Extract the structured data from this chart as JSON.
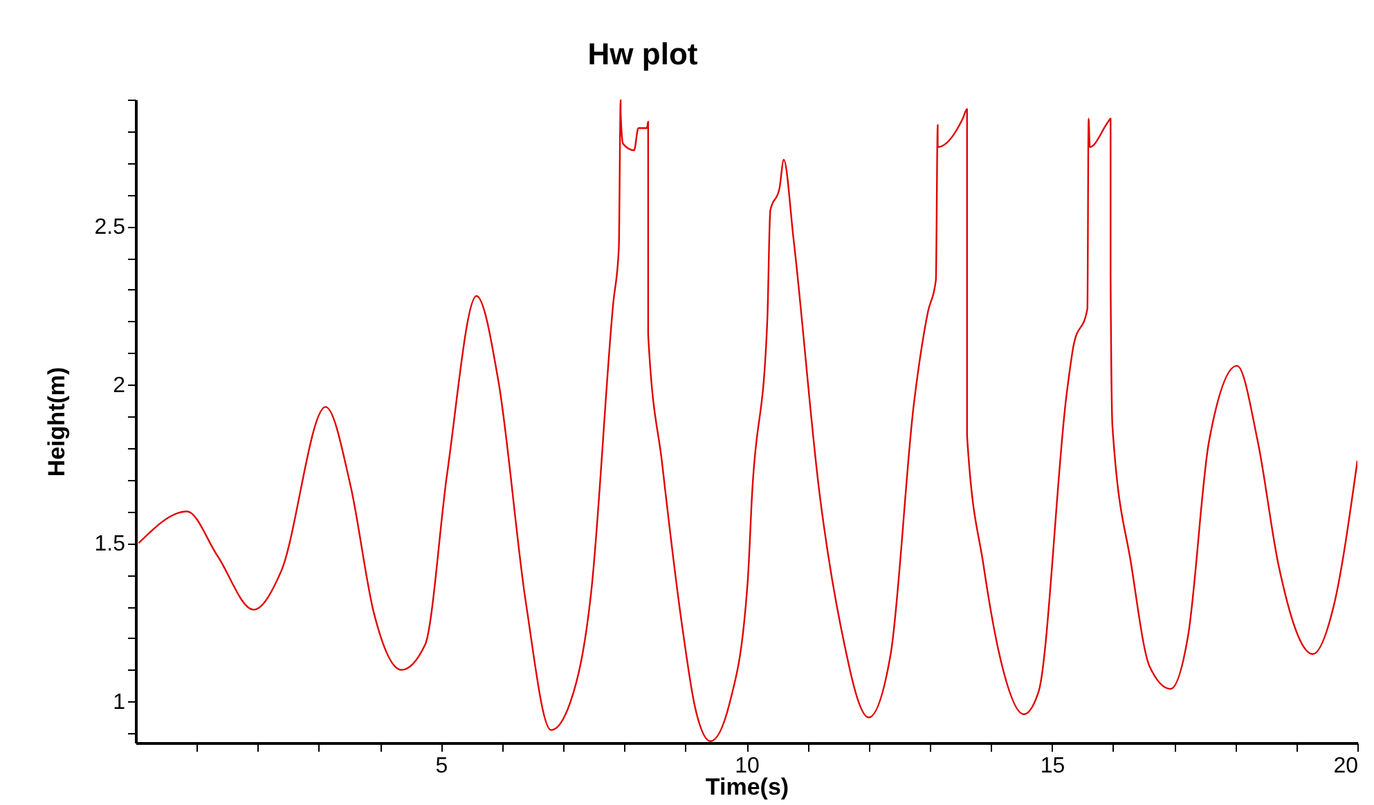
{
  "chart_data": {
    "type": "line",
    "title": "Hw plot",
    "xlabel": "Time(s)",
    "ylabel": "Height(m)",
    "xlim": [
      0,
      20
    ],
    "ylim": [
      0.87,
      2.9
    ],
    "xticks": [
      {
        "value": 1,
        "label": null
      },
      {
        "value": 2,
        "label": null
      },
      {
        "value": 3,
        "label": null
      },
      {
        "value": 4,
        "label": null
      },
      5,
      {
        "value": 6,
        "label": null
      },
      {
        "value": 7,
        "label": null
      },
      {
        "value": 8,
        "label": null
      },
      {
        "value": 9,
        "label": null
      },
      10,
      {
        "value": 11,
        "label": null
      },
      {
        "value": 12,
        "label": null
      },
      {
        "value": 13,
        "label": null
      },
      {
        "value": 14,
        "label": null
      },
      15,
      {
        "value": 16,
        "label": null
      },
      {
        "value": 17,
        "label": null
      },
      {
        "value": 18,
        "label": null
      },
      {
        "value": 19,
        "label": null
      },
      20
    ],
    "yticks": [
      {
        "value": 0.9,
        "label": null
      },
      1,
      {
        "value": 1.1,
        "label": null
      },
      {
        "value": 1.2,
        "label": null
      },
      {
        "value": 1.3,
        "label": null
      },
      {
        "value": 1.4,
        "label": null
      },
      1.5,
      {
        "value": 1.6,
        "label": null
      },
      {
        "value": 1.7,
        "label": null
      },
      {
        "value": 1.8,
        "label": null
      },
      {
        "value": 1.9,
        "label": null
      },
      2,
      {
        "value": 2.1,
        "label": null
      },
      {
        "value": 2.2,
        "label": null
      },
      {
        "value": 2.3,
        "label": null
      },
      {
        "value": 2.4,
        "label": null
      },
      2.5,
      {
        "value": 2.6,
        "label": null
      },
      {
        "value": 2.7,
        "label": null
      },
      {
        "value": 2.8,
        "label": null
      },
      {
        "value": 2.9,
        "label": null
      }
    ],
    "grid": false,
    "marker": "none",
    "line_style": "solid",
    "series": [
      {
        "color": "#e00000",
        "x": [
          0.05,
          0.84,
          1.34,
          1.93,
          2.38,
          3.11,
          3.52,
          3.9,
          4.35,
          4.74,
          5.1,
          5.58,
          5.94,
          6.39,
          6.8,
          7.12,
          7.46,
          7.82,
          7.91,
          7.94,
          7.94,
          7.98,
          8.16,
          8.23,
          8.37,
          8.39,
          8.39,
          8.62,
          8.96,
          9.16,
          9.41,
          9.73,
          10.02,
          10.09,
          10.34,
          10.39,
          10.54,
          10.61,
          10.77,
          11.2,
          11.54,
          12.0,
          12.36,
          12.74,
          12.97,
          13.1,
          13.13,
          13.13,
          13.54,
          13.61,
          13.61,
          13.88,
          14.15,
          14.54,
          14.78,
          15.24,
          15.35,
          15.58,
          15.6,
          15.62,
          15.92,
          15.96,
          15.96,
          15.99,
          16.3,
          16.6,
          16.94,
          17.23,
          17.57,
          18.03,
          18.37,
          18.71,
          19.27,
          19.61,
          20.0
        ],
        "values": [
          1.5,
          1.6,
          1.46,
          1.29,
          1.41,
          1.93,
          1.68,
          1.28,
          1.1,
          1.18,
          1.72,
          2.28,
          2.01,
          1.31,
          0.91,
          1.0,
          1.35,
          2.26,
          2.43,
          2.9,
          2.86,
          2.76,
          2.74,
          2.81,
          2.81,
          2.83,
          2.16,
          1.75,
          1.22,
          0.98,
          0.875,
          1.0,
          1.38,
          1.65,
          2.2,
          2.55,
          2.62,
          2.71,
          2.46,
          1.65,
          1.24,
          0.95,
          1.15,
          1.94,
          2.23,
          2.33,
          2.82,
          2.75,
          2.84,
          2.87,
          1.84,
          1.43,
          1.14,
          0.96,
          1.03,
          1.97,
          2.12,
          2.24,
          2.84,
          2.75,
          2.83,
          2.84,
          2.35,
          1.87,
          1.43,
          1.11,
          1.04,
          1.21,
          1.82,
          2.06,
          1.82,
          1.43,
          1.15,
          1.3,
          1.76
        ]
      }
    ]
  }
}
